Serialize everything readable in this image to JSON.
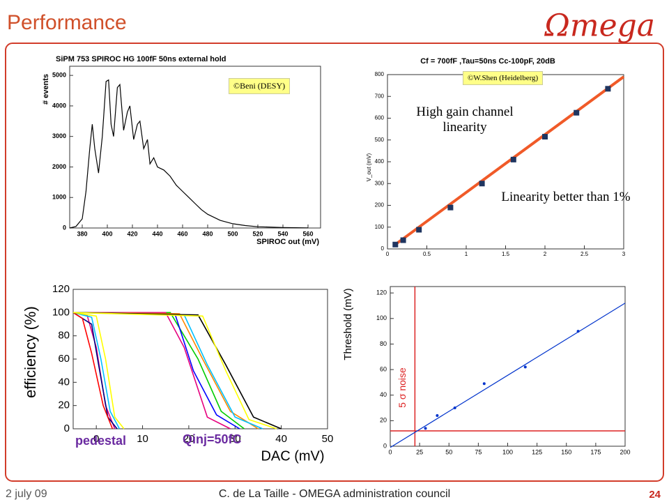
{
  "slide": {
    "title": "Performance",
    "logo": "Ωmega",
    "footer_left": "2 july 09",
    "footer_center": "C. de La Taille - OMEGA administration council",
    "page": "24"
  },
  "chart_data": [
    {
      "type": "line",
      "title": "SiPM 753 SPIROC HG 100fF 50ns external hold",
      "xlabel": "SPIROC out (mV)",
      "ylabel": "# events",
      "xlim": [
        370,
        570
      ],
      "ylim": [
        0,
        5300
      ],
      "xticks": [
        380,
        400,
        420,
        440,
        460,
        480,
        500,
        520,
        540,
        560
      ],
      "yticks": [
        0,
        1000,
        2000,
        3000,
        4000,
        5000
      ],
      "annotations": [
        "©Beni (DESY)"
      ],
      "series": [
        {
          "color": "#000000",
          "style": "line",
          "x": [
            370,
            375,
            380,
            383,
            386,
            388,
            390,
            393,
            396,
            399,
            401,
            403,
            405,
            408,
            410,
            413,
            416,
            418,
            421,
            424,
            426,
            429,
            432,
            434,
            437,
            440,
            445,
            450,
            455,
            460,
            465,
            470,
            475,
            480,
            490,
            500,
            510,
            520,
            540,
            560
          ],
          "values": [
            0,
            50,
            300,
            1200,
            2600,
            3400,
            2600,
            1800,
            3000,
            4800,
            4850,
            3400,
            3000,
            4600,
            4700,
            3200,
            3800,
            4000,
            2900,
            3400,
            3500,
            2600,
            2900,
            2100,
            2300,
            2000,
            1900,
            1700,
            1400,
            1200,
            1000,
            800,
            600,
            450,
            250,
            140,
            80,
            40,
            15,
            5
          ]
        }
      ]
    },
    {
      "type": "scatter",
      "title": "Cf = 700fF ,Tau=50ns Cc-100pF, 20dB",
      "ylabel": "V_out (mV)",
      "xlim": [
        0,
        3
      ],
      "ylim": [
        0,
        800
      ],
      "xticks": [
        0,
        0.5,
        1,
        1.5,
        2,
        2.5,
        3
      ],
      "yticks": [
        0,
        100,
        200,
        300,
        400,
        500,
        600,
        700,
        800
      ],
      "annotations": [
        "©W.Shen   (Heidelberg)",
        "High gain channel linearity",
        "Linearity better than 1%"
      ],
      "series": [
        {
          "color": "#f05a28",
          "style": "line",
          "x": [
            0.08,
            3
          ],
          "values": [
            15,
            790
          ]
        },
        {
          "color": "#1f3560",
          "style": "marker",
          "x": [
            0.1,
            0.2,
            0.4,
            0.8,
            1.2,
            1.6,
            2.0,
            2.4,
            2.8
          ],
          "values": [
            20,
            40,
            88,
            190,
            300,
            410,
            515,
            625,
            735
          ]
        }
      ]
    },
    {
      "type": "line",
      "xlabel": "DAC (mV)",
      "ylabel": "efficiency (%)",
      "xlim": [
        -5,
        50
      ],
      "ylim": [
        0,
        120
      ],
      "xticks": [
        0,
        10,
        20,
        30,
        40,
        50
      ],
      "yticks": [
        0,
        20,
        40,
        60,
        80,
        100,
        120
      ],
      "annotations": [
        "pedestal",
        "Qinj=50fC"
      ],
      "series": [
        {
          "color": "#e6007e",
          "style": "line",
          "x": [
            -5,
            -2,
            0,
            2,
            4
          ],
          "values": [
            100,
            98,
            70,
            20,
            0
          ]
        },
        {
          "color": "#00bfff",
          "style": "line",
          "x": [
            -5,
            -1,
            1,
            3,
            5
          ],
          "values": [
            100,
            96,
            60,
            15,
            0
          ]
        },
        {
          "color": "#000080",
          "style": "line",
          "x": [
            -5,
            -1,
            0.5,
            2.5,
            4.5
          ],
          "values": [
            100,
            90,
            55,
            10,
            0
          ]
        },
        {
          "color": "#ff0000",
          "style": "line",
          "x": [
            -5,
            -3,
            -1,
            1.5,
            3.5
          ],
          "values": [
            100,
            95,
            65,
            20,
            0
          ]
        },
        {
          "color": "#ffff00",
          "style": "line",
          "x": [
            -5,
            0,
            2,
            4,
            6
          ],
          "values": [
            100,
            97,
            60,
            10,
            0
          ]
        },
        {
          "color": "#00cc00",
          "style": "line",
          "x": [
            -5,
            16,
            22,
            27,
            32
          ],
          "values": [
            100,
            100,
            60,
            15,
            0
          ]
        },
        {
          "color": "#e6007e",
          "style": "line",
          "x": [
            -5,
            15,
            19,
            24,
            29
          ],
          "values": [
            100,
            100,
            70,
            10,
            0
          ]
        },
        {
          "color": "#0000ff",
          "style": "line",
          "x": [
            -5,
            17,
            21,
            26,
            31
          ],
          "values": [
            100,
            99,
            50,
            12,
            0
          ]
        },
        {
          "color": "#ff8800",
          "style": "line",
          "x": [
            -5,
            18,
            23,
            29,
            35
          ],
          "values": [
            100,
            99,
            60,
            15,
            0
          ]
        },
        {
          "color": "#00bfff",
          "style": "line",
          "x": [
            -5,
            19,
            24,
            30,
            36
          ],
          "values": [
            100,
            98,
            55,
            10,
            0
          ]
        },
        {
          "color": "#000000",
          "style": "line",
          "x": [
            -5,
            22,
            28,
            34,
            40
          ],
          "values": [
            100,
            98,
            55,
            10,
            0
          ]
        },
        {
          "color": "#ffff00",
          "style": "line",
          "x": [
            -5,
            23,
            28,
            33,
            39
          ],
          "values": [
            100,
            97,
            50,
            8,
            0
          ]
        }
      ]
    },
    {
      "type": "scatter",
      "ylabel": "Threshold (mV)",
      "xlim": [
        0,
        200
      ],
      "ylim": [
        0,
        125
      ],
      "xticks": [
        0,
        25,
        50,
        75,
        100,
        125,
        150,
        175,
        200
      ],
      "yticks": [
        0,
        20,
        40,
        60,
        80,
        100,
        120
      ],
      "annotations": [
        "5 σ noise"
      ],
      "vlines": [
        21
      ],
      "hlines": [
        12
      ],
      "rule_color": "#dd2222",
      "series": [
        {
          "color": "#0033cc",
          "style": "line",
          "x": [
            0,
            200
          ],
          "values": [
            -1,
            112
          ]
        },
        {
          "color": "#0033cc",
          "style": "marker",
          "x": [
            30,
            40,
            55,
            80,
            115,
            160
          ],
          "values": [
            14,
            24,
            30,
            49,
            62,
            90
          ]
        }
      ]
    }
  ]
}
